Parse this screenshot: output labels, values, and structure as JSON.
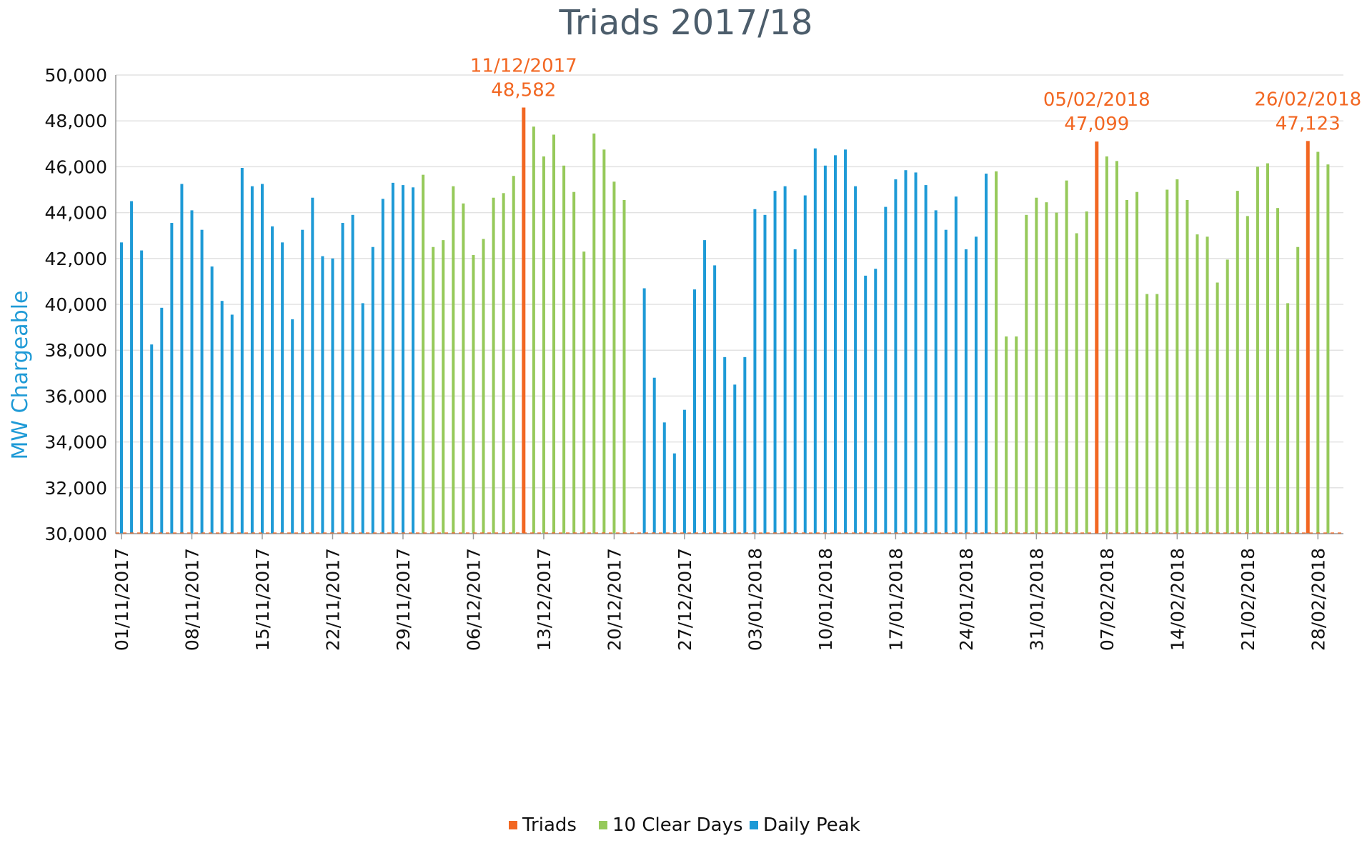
{
  "chart_data": {
    "type": "bar",
    "title": "Triads 2017/18",
    "ylabel": "MW Chargeable",
    "xlabel": "",
    "ylim": [
      30000,
      50000
    ],
    "yticks": [
      30000,
      32000,
      34000,
      36000,
      38000,
      40000,
      42000,
      44000,
      46000,
      48000,
      50000
    ],
    "ytick_labels": [
      "30,000",
      "32,000",
      "34,000",
      "36,000",
      "38,000",
      "40,000",
      "42,000",
      "44,000",
      "46,000",
      "48,000",
      "50,000"
    ],
    "x_start": "01/11/2017",
    "x_end": "28/02/2018",
    "xtick_labels": [
      "01/11/2017",
      "08/11/2017",
      "15/11/2017",
      "22/11/2017",
      "29/11/2017",
      "06/12/2017",
      "13/12/2017",
      "20/12/2017",
      "27/12/2017",
      "03/01/2018",
      "10/01/2018",
      "17/01/2018",
      "24/01/2018",
      "31/01/2018",
      "07/02/2018",
      "14/02/2018",
      "21/02/2018",
      "28/02/2018"
    ],
    "legend_position": "bottom",
    "colors": {
      "Triads": "#f26722",
      "10 Clear Days": "#96c95a",
      "Daily Peak": "#1e9ad6"
    },
    "series": [
      {
        "name": "Daily Peak",
        "points": [
          [
            "01/11/2017",
            42700
          ],
          [
            "02/11/2017",
            44500
          ],
          [
            "03/11/2017",
            42350
          ],
          [
            "04/11/2017",
            38250
          ],
          [
            "05/11/2017",
            39850
          ],
          [
            "06/11/2017",
            43550
          ],
          [
            "07/11/2017",
            45250
          ],
          [
            "08/11/2017",
            44100
          ],
          [
            "09/11/2017",
            43250
          ],
          [
            "10/11/2017",
            41650
          ],
          [
            "11/11/2017",
            40150
          ],
          [
            "12/11/2017",
            39550
          ],
          [
            "13/11/2017",
            45950
          ],
          [
            "14/11/2017",
            45150
          ],
          [
            "15/11/2017",
            45250
          ],
          [
            "16/11/2017",
            43400
          ],
          [
            "17/11/2017",
            42700
          ],
          [
            "18/11/2017",
            39350
          ],
          [
            "19/11/2017",
            43250
          ],
          [
            "20/11/2017",
            44650
          ],
          [
            "21/11/2017",
            42100
          ],
          [
            "22/11/2017",
            42000
          ],
          [
            "23/11/2017",
            43550
          ],
          [
            "24/11/2017",
            43900
          ],
          [
            "25/11/2017",
            40050
          ],
          [
            "26/11/2017",
            42500
          ],
          [
            "27/11/2017",
            44600
          ],
          [
            "28/11/2017",
            45300
          ],
          [
            "29/11/2017",
            45200
          ],
          [
            "30/11/2017",
            45100
          ],
          [
            "23/12/2017",
            40700
          ],
          [
            "24/12/2017",
            36800
          ],
          [
            "25/12/2017",
            34850
          ],
          [
            "26/12/2017",
            33500
          ],
          [
            "27/12/2017",
            35400
          ],
          [
            "28/12/2017",
            40650
          ],
          [
            "29/12/2017",
            42800
          ],
          [
            "30/12/2017",
            41700
          ],
          [
            "31/12/2017",
            37700
          ],
          [
            "01/01/2018",
            36500
          ],
          [
            "02/01/2018",
            37700
          ],
          [
            "03/01/2018",
            44150
          ],
          [
            "04/01/2018",
            43900
          ],
          [
            "05/01/2018",
            44950
          ],
          [
            "06/01/2018",
            45150
          ],
          [
            "07/01/2018",
            42400
          ],
          [
            "08/01/2018",
            44750
          ],
          [
            "09/01/2018",
            46800
          ],
          [
            "10/01/2018",
            46050
          ],
          [
            "11/01/2018",
            46500
          ],
          [
            "12/01/2018",
            46750
          ],
          [
            "13/01/2018",
            45150
          ],
          [
            "14/01/2018",
            41250
          ],
          [
            "15/01/2018",
            41550
          ],
          [
            "16/01/2018",
            44250
          ],
          [
            "17/01/2018",
            45450
          ],
          [
            "18/01/2018",
            45850
          ],
          [
            "19/01/2018",
            45750
          ],
          [
            "20/01/2018",
            45200
          ],
          [
            "21/01/2018",
            44100
          ],
          [
            "22/01/2018",
            43250
          ],
          [
            "23/01/2018",
            44700
          ],
          [
            "24/01/2018",
            42400
          ],
          [
            "25/01/2018",
            42950
          ],
          [
            "26/01/2018",
            45700
          ]
        ]
      },
      {
        "name": "10 Clear Days",
        "points": [
          [
            "01/12/2017",
            45650
          ],
          [
            "02/12/2017",
            42500
          ],
          [
            "03/12/2017",
            42800
          ],
          [
            "04/12/2017",
            45150
          ],
          [
            "05/12/2017",
            44400
          ],
          [
            "06/12/2017",
            42150
          ],
          [
            "07/12/2017",
            42850
          ],
          [
            "08/12/2017",
            44650
          ],
          [
            "09/12/2017",
            44850
          ],
          [
            "10/12/2017",
            45600
          ],
          [
            "12/12/2017",
            47750
          ],
          [
            "13/12/2017",
            46450
          ],
          [
            "14/12/2017",
            47400
          ],
          [
            "15/12/2017",
            46050
          ],
          [
            "16/12/2017",
            44900
          ],
          [
            "17/12/2017",
            42300
          ],
          [
            "18/12/2017",
            47450
          ],
          [
            "19/12/2017",
            46750
          ],
          [
            "20/12/2017",
            45350
          ],
          [
            "21/12/2017",
            44550
          ],
          [
            "27/01/2018",
            45800
          ],
          [
            "28/01/2018",
            38600
          ],
          [
            "29/01/2018",
            38600
          ],
          [
            "30/01/2018",
            43900
          ],
          [
            "31/01/2018",
            44650
          ],
          [
            "01/02/2018",
            44450
          ],
          [
            "02/02/2018",
            44000
          ],
          [
            "03/02/2018",
            45400
          ],
          [
            "04/02/2018",
            43100
          ],
          [
            "05/02/2018",
            44050
          ],
          [
            "07/02/2018",
            46450
          ],
          [
            "08/02/2018",
            46250
          ],
          [
            "09/02/2018",
            44550
          ],
          [
            "10/02/2018",
            44900
          ],
          [
            "11/02/2018",
            40450
          ],
          [
            "12/02/2018",
            40450
          ],
          [
            "13/02/2018",
            45000
          ],
          [
            "14/02/2018",
            45450
          ],
          [
            "15/02/2018",
            44550
          ],
          [
            "16/02/2018",
            43050
          ],
          [
            "17/02/2018",
            42950
          ],
          [
            "18/02/2018",
            40950
          ],
          [
            "19/02/2018",
            41950
          ],
          [
            "20/02/2018",
            44950
          ],
          [
            "21/02/2018",
            43850
          ],
          [
            "22/02/2018",
            46000
          ],
          [
            "23/02/2018",
            46150
          ],
          [
            "24/02/2018",
            44200
          ],
          [
            "25/02/2018",
            40050
          ],
          [
            "26/02/2018",
            42500
          ],
          [
            "28/02/2018",
            46650
          ],
          [
            "01/03/2018",
            46100
          ]
        ]
      },
      {
        "name": "Triads",
        "points": [
          [
            "11/12/2017",
            48582
          ],
          [
            "06/02/2018",
            47099
          ],
          [
            "27/02/2018",
            47123
          ]
        ]
      }
    ],
    "annotations": [
      {
        "date": "11/12/2017",
        "value": "48,582",
        "anchor": "11/12/2017"
      },
      {
        "date": "05/02/2018",
        "value": "47,099",
        "anchor": "06/02/2018"
      },
      {
        "date": "26/02/2018",
        "value": "47,123",
        "anchor": "27/02/2018"
      }
    ]
  }
}
